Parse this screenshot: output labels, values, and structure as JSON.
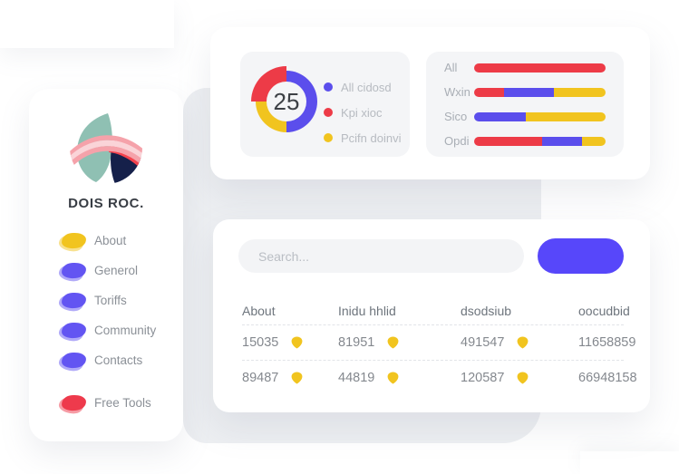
{
  "colors": {
    "blue": "#5b4eec",
    "red": "#ed3b47",
    "yellow": "#f1c41f",
    "button_blue": "#5747fa",
    "canvas_grey": "#edeff2",
    "subcard_grey": "#f4f5f7"
  },
  "sidebar": {
    "title": "DOIS ROC.",
    "items": [
      {
        "label": "About",
        "color": "#f1c41f"
      },
      {
        "label": "Generol",
        "color": "#6355f2"
      },
      {
        "label": "Toriffs",
        "color": "#6355f2"
      },
      {
        "label": "Community",
        "color": "#6355f2"
      },
      {
        "label": "Contacts",
        "color": "#6355f2"
      },
      {
        "label": "Free Tools",
        "color": "#ee3a4c"
      }
    ]
  },
  "stats_card": {
    "donut": {
      "value": "25",
      "legend": [
        {
          "label": "All cidosd",
          "color": "#5b4eec"
        },
        {
          "label": "Kpi xioc",
          "color": "#ed3b47"
        },
        {
          "label": "Pcifn doinvi",
          "color": "#f1c41f"
        }
      ]
    },
    "bars": {
      "rows": [
        {
          "label": "All",
          "segments": [
            {
              "color": "#ed3b47",
              "pct": 100
            }
          ]
        },
        {
          "label": "Wxin",
          "segments": [
            {
              "color": "#ed3b47",
              "pct": 23
            },
            {
              "color": "#5b4eec",
              "pct": 38
            },
            {
              "color": "#f1c41f",
              "pct": 39
            }
          ]
        },
        {
          "label": "Sico",
          "segments": [
            {
              "color": "#5b4eec",
              "pct": 39
            },
            {
              "color": "#f1c41f",
              "pct": 61
            }
          ]
        },
        {
          "label": "Opdi",
          "segments": [
            {
              "color": "#ed3b47",
              "pct": 52
            },
            {
              "color": "#5b4eec",
              "pct": 30
            },
            {
              "color": "#f1c41f",
              "pct": 18
            }
          ]
        }
      ]
    }
  },
  "table_card": {
    "search_placeholder": "Search...",
    "headers": [
      "About",
      "Inidu hhlid",
      "dsodsiub",
      "oocudbid"
    ],
    "rows": [
      [
        "15035",
        "81951",
        "491547",
        "11658859"
      ],
      [
        "89487",
        "44819",
        "120587",
        "66948158"
      ]
    ]
  },
  "chart_data": [
    {
      "type": "pie",
      "donut": true,
      "center_label": "25",
      "labels": [
        "All cidosd",
        "Kpi xioc",
        "Pcifn doinvi"
      ],
      "values": [
        50,
        25,
        25
      ],
      "colors": [
        "#5b4eec",
        "#ed3b47",
        "#f1c41f"
      ],
      "legend_position": "right"
    },
    {
      "type": "bar",
      "orientation": "horizontal",
      "stacked": true,
      "categories": [
        "All",
        "Wxin",
        "Sico",
        "Opdi"
      ],
      "series": [
        {
          "name": "red",
          "values": [
            100,
            23,
            0,
            52
          ]
        },
        {
          "name": "blue",
          "values": [
            0,
            38,
            39,
            30
          ]
        },
        {
          "name": "yellow",
          "values": [
            0,
            39,
            61,
            18
          ]
        }
      ],
      "xlim": [
        0,
        100
      ],
      "grid": false,
      "legend_position": "none"
    }
  ]
}
